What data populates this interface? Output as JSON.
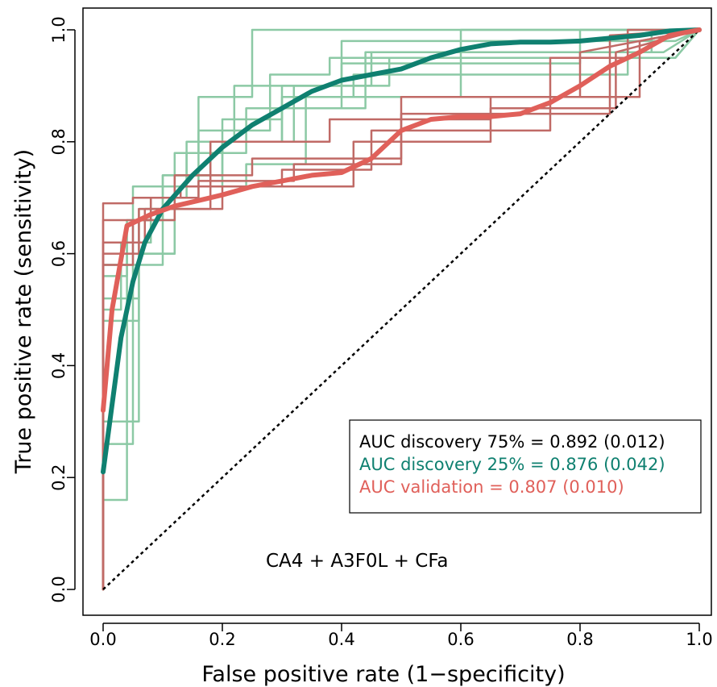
{
  "chart_data": {
    "type": "line",
    "title": "",
    "xlabel": "False positive rate (1−specificity)",
    "ylabel": "True positive rate (sensitivity)",
    "xlim": [
      0,
      1
    ],
    "ylim": [
      0,
      1
    ],
    "x_ticks": [
      "0.0",
      "0.2",
      "0.4",
      "0.6",
      "0.8",
      "1.0"
    ],
    "y_ticks": [
      "0.0",
      "0.2",
      "0.4",
      "0.6",
      "0.8",
      "1.0"
    ],
    "grid": false,
    "annotation": "CA4 + A3F0L + CFa",
    "legend_position": "bottom-right",
    "legend": [
      {
        "text": "AUC discovery 75% = 0.892 (0.012)",
        "color": "#000000"
      },
      {
        "text": "AUC discovery 25% = 0.876 (0.042)",
        "color": "#0f8070"
      },
      {
        "text": "AUC validation = 0.807 (0.010)",
        "color": "#e0605a"
      }
    ],
    "diagonal": {
      "x": [
        0,
        1
      ],
      "y": [
        0,
        1
      ],
      "style": "dotted",
      "color": "#000000"
    },
    "colors": {
      "discovery_folds": "#8cc9a5",
      "validation_folds": "#c06a66",
      "discovery_mean": "#0f8070",
      "validation_mean": "#e0605a"
    },
    "series": [
      {
        "role": "discovery-fold",
        "x": [
          0,
          0,
          0.04,
          0.04,
          0.06,
          0.06,
          0.12,
          0.12,
          0.16,
          0.16,
          0.25,
          0.25,
          0.95,
          1
        ],
        "y": [
          0,
          0.56,
          0.56,
          0.62,
          0.62,
          0.68,
          0.68,
          0.78,
          0.78,
          0.88,
          0.88,
          1,
          1,
          1
        ]
      },
      {
        "role": "discovery-fold",
        "x": [
          0,
          0,
          0.04,
          0.04,
          0.08,
          0.08,
          0.14,
          0.14,
          0.22,
          0.22,
          0.4,
          0.4,
          0.96,
          1
        ],
        "y": [
          0,
          0.16,
          0.16,
          0.62,
          0.62,
          0.7,
          0.7,
          0.8,
          0.8,
          0.9,
          0.9,
          0.98,
          0.98,
          1
        ]
      },
      {
        "role": "discovery-fold",
        "x": [
          0,
          0,
          0.05,
          0.05,
          0.1,
          0.1,
          0.18,
          0.18,
          0.3,
          0.3,
          0.44,
          0.44,
          0.94,
          1
        ],
        "y": [
          0,
          0.26,
          0.26,
          0.58,
          0.58,
          0.74,
          0.74,
          0.8,
          0.8,
          0.86,
          0.86,
          0.96,
          0.96,
          1
        ]
      },
      {
        "role": "discovery-fold",
        "x": [
          0,
          0,
          0.06,
          0.06,
          0.12,
          0.12,
          0.2,
          0.2,
          0.32,
          0.32,
          0.48,
          0.48,
          0.96,
          1
        ],
        "y": [
          0,
          0.3,
          0.3,
          0.6,
          0.6,
          0.72,
          0.72,
          0.8,
          0.8,
          0.9,
          0.9,
          0.95,
          0.95,
          1
        ]
      },
      {
        "role": "discovery-fold",
        "x": [
          0,
          0,
          0.03,
          0.03,
          0.08,
          0.08,
          0.16,
          0.16,
          0.28,
          0.28,
          0.38,
          0.38,
          0.96,
          1
        ],
        "y": [
          0,
          0.5,
          0.5,
          0.62,
          0.62,
          0.7,
          0.7,
          0.82,
          0.82,
          0.92,
          0.92,
          0.95,
          0.95,
          1
        ]
      },
      {
        "role": "discovery-fold",
        "x": [
          0,
          0,
          0.04,
          0.04,
          0.1,
          0.1,
          0.18,
          0.18,
          0.24,
          0.24,
          0.4,
          0.4,
          0.8,
          0.8,
          1
        ],
        "y": [
          0,
          0.58,
          0.58,
          0.66,
          0.66,
          0.74,
          0.74,
          0.78,
          0.78,
          0.86,
          0.86,
          0.94,
          0.94,
          1,
          1
        ]
      },
      {
        "role": "discovery-fold",
        "x": [
          0,
          0,
          0.06,
          0.06,
          0.12,
          0.12,
          0.2,
          0.2,
          0.3,
          0.3,
          0.42,
          0.42,
          0.88,
          0.88,
          1
        ],
        "y": [
          0,
          0.52,
          0.52,
          0.66,
          0.66,
          0.74,
          0.74,
          0.8,
          0.8,
          0.88,
          0.88,
          0.92,
          0.92,
          1,
          1
        ]
      },
      {
        "role": "discovery-fold",
        "x": [
          0,
          0,
          0.05,
          0.05,
          0.14,
          0.14,
          0.2,
          0.2,
          0.3,
          0.3,
          0.45,
          0.45,
          0.92,
          0.92,
          1
        ],
        "y": [
          0,
          0.58,
          0.58,
          0.72,
          0.72,
          0.78,
          0.78,
          0.84,
          0.84,
          0.9,
          0.9,
          0.96,
          0.96,
          1,
          1
        ]
      },
      {
        "role": "discovery-fold",
        "x": [
          0,
          0,
          0.06,
          0.06,
          0.12,
          0.12,
          0.24,
          0.24,
          0.34,
          0.34,
          0.6,
          0.6,
          1
        ],
        "y": [
          0,
          0.48,
          0.48,
          0.6,
          0.6,
          0.72,
          0.72,
          0.76,
          0.76,
          0.88,
          0.88,
          1,
          1
        ]
      },
      {
        "role": "validation-fold",
        "x": [
          0,
          0,
          0.05,
          0.05,
          0.13,
          0.13,
          0.3,
          0.3,
          0.45,
          0.45,
          0.75,
          0.75,
          0.88,
          0.88,
          1
        ],
        "y": [
          0,
          0.69,
          0.69,
          0.7,
          0.7,
          0.72,
          0.72,
          0.75,
          0.75,
          0.82,
          0.82,
          0.95,
          0.95,
          1,
          1
        ]
      },
      {
        "role": "validation-fold",
        "x": [
          0,
          0,
          0.08,
          0.08,
          0.16,
          0.16,
          0.32,
          0.32,
          0.5,
          0.5,
          0.85,
          0.85,
          1
        ],
        "y": [
          0,
          0.66,
          0.66,
          0.7,
          0.7,
          0.73,
          0.73,
          0.76,
          0.76,
          0.85,
          0.85,
          0.99,
          1
        ]
      },
      {
        "role": "validation-fold",
        "x": [
          0,
          0,
          0.07,
          0.07,
          0.18,
          0.18,
          0.38,
          0.38,
          0.65,
          0.65,
          0.9,
          0.9,
          1
        ],
        "y": [
          0,
          0.62,
          0.62,
          0.68,
          0.68,
          0.8,
          0.8,
          0.84,
          0.84,
          0.88,
          0.88,
          0.98,
          1
        ]
      },
      {
        "role": "validation-fold",
        "x": [
          0,
          0,
          0.06,
          0.06,
          0.2,
          0.2,
          0.42,
          0.42,
          0.65,
          0.65,
          0.86,
          0.86,
          1
        ],
        "y": [
          0,
          0.6,
          0.6,
          0.68,
          0.68,
          0.72,
          0.72,
          0.8,
          0.8,
          0.86,
          0.86,
          0.96,
          1
        ]
      },
      {
        "role": "validation-fold",
        "x": [
          0,
          0,
          0.05,
          0.05,
          0.12,
          0.12,
          0.25,
          0.25,
          0.5,
          0.5,
          0.8,
          0.8,
          1
        ],
        "y": [
          0,
          0.58,
          0.58,
          0.66,
          0.66,
          0.74,
          0.74,
          0.77,
          0.77,
          0.88,
          0.88,
          0.96,
          1
        ]
      },
      {
        "role": "discovery-mean",
        "x": [
          0,
          0.01,
          0.02,
          0.03,
          0.05,
          0.07,
          0.1,
          0.15,
          0.2,
          0.25,
          0.3,
          0.35,
          0.4,
          0.45,
          0.5,
          0.55,
          0.6,
          0.65,
          0.7,
          0.75,
          0.8,
          0.85,
          0.9,
          0.95,
          1
        ],
        "y": [
          0.21,
          0.29,
          0.37,
          0.45,
          0.55,
          0.62,
          0.68,
          0.74,
          0.79,
          0.83,
          0.86,
          0.89,
          0.91,
          0.92,
          0.93,
          0.95,
          0.965,
          0.975,
          0.978,
          0.978,
          0.98,
          0.985,
          0.99,
          0.998,
          1
        ]
      },
      {
        "role": "validation-mean",
        "x": [
          0,
          0.015,
          0.04,
          0.08,
          0.12,
          0.16,
          0.2,
          0.25,
          0.3,
          0.35,
          0.4,
          0.45,
          0.5,
          0.55,
          0.6,
          0.65,
          0.7,
          0.75,
          0.8,
          0.85,
          0.9,
          0.95,
          1
        ],
        "y": [
          0.32,
          0.5,
          0.65,
          0.67,
          0.685,
          0.695,
          0.705,
          0.72,
          0.73,
          0.74,
          0.745,
          0.77,
          0.82,
          0.84,
          0.845,
          0.845,
          0.85,
          0.87,
          0.9,
          0.935,
          0.96,
          0.99,
          1
        ]
      }
    ]
  }
}
